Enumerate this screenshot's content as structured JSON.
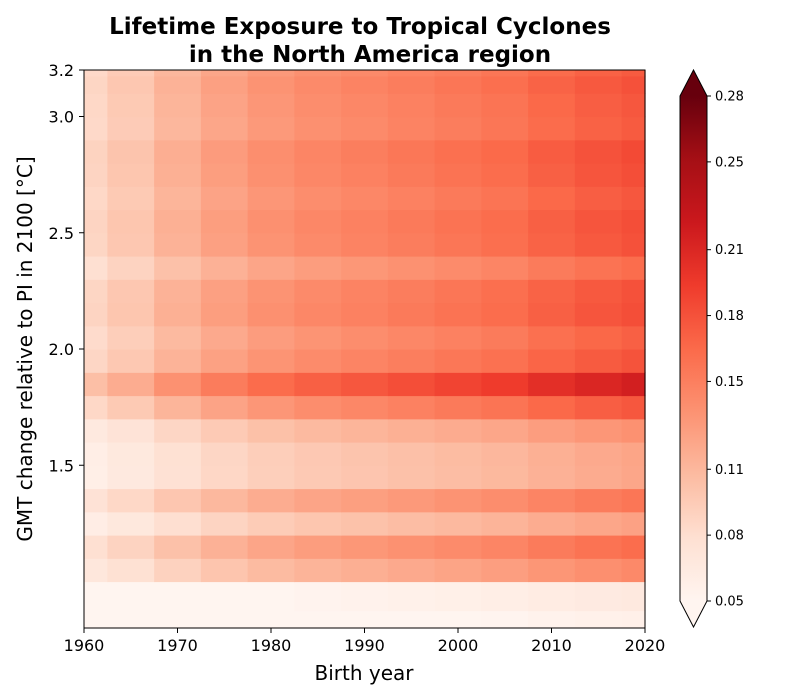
{
  "chart_data": {
    "type": "heatmap",
    "title_line1": "Lifetime Exposure to Tropical Cyclones",
    "title_line2": "in the North America region",
    "xlabel": "Birth year",
    "ylabel": "GMT change relative to PI in 2100 [°C]",
    "xlim": [
      1960,
      2020
    ],
    "ylim": [
      0.8,
      3.2
    ],
    "x_ticks": [
      1960,
      1970,
      1980,
      1990,
      2000,
      2010,
      2020
    ],
    "x_tick_labels": [
      "1960",
      "1970",
      "1980",
      "1990",
      "2000",
      "2010",
      "2020"
    ],
    "y_ticks": [
      1.5,
      2.0,
      2.5,
      3.0,
      3.2
    ],
    "y_tick_labels": [
      "1.5",
      "2.0",
      "2.5",
      "3.0",
      "3.2"
    ],
    "colorbar": {
      "colormap": "Reds",
      "range": [
        0.05,
        0.28
      ],
      "extend": "both",
      "ticks": [
        0.05,
        0.08,
        0.11,
        0.15,
        0.18,
        0.21,
        0.25,
        0.28
      ],
      "tick_labels": [
        "0.05",
        "0.08",
        "0.11",
        "0.15",
        "0.18",
        "0.21",
        "0.25",
        "0.28"
      ],
      "stops": [
        "#fff5f0",
        "#fee0d2",
        "#fcbba1",
        "#fc9272",
        "#fb6a4a",
        "#ef3b2c",
        "#cb181d",
        "#a50f15",
        "#67000d"
      ]
    },
    "birth_years": [
      1960,
      1965,
      1970,
      1975,
      1980,
      1985,
      1990,
      1995,
      2000,
      2005,
      2010,
      2015,
      2020
    ],
    "gmt_levels": [
      0.8,
      0.95,
      1.05,
      1.15,
      1.25,
      1.35,
      1.45,
      1.55,
      1.65,
      1.75,
      1.85,
      1.95,
      2.05,
      2.15,
      2.25,
      2.35,
      2.45,
      2.55,
      2.65,
      2.75,
      2.85,
      2.95,
      3.05,
      3.15,
      3.2
    ],
    "row_base": [
      0.05,
      0.058,
      0.125,
      0.143,
      0.11,
      0.137,
      0.107,
      0.108,
      0.12,
      0.155,
      0.19,
      0.157,
      0.15,
      0.16,
      0.158,
      0.143,
      0.158,
      0.16,
      0.155,
      0.16,
      0.162,
      0.153,
      0.155,
      0.158,
      0.153
    ],
    "year_factor": [
      0.55,
      0.62,
      0.72,
      0.8,
      0.86,
      0.9,
      0.93,
      0.96,
      0.99,
      1.02,
      1.07,
      1.11,
      1.14
    ]
  }
}
